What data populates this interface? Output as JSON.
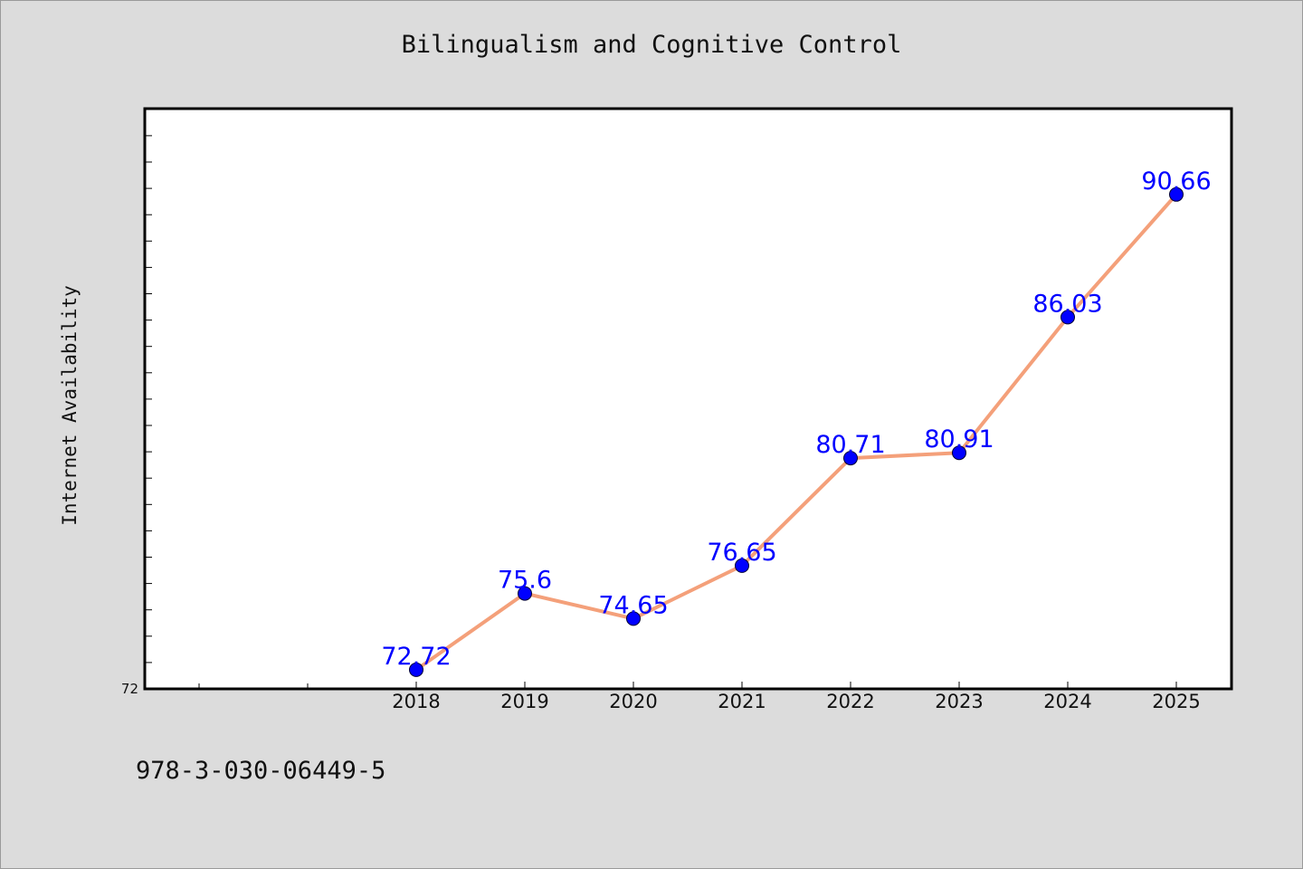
{
  "chart_data": {
    "type": "line",
    "title": "Bilingualism and Cognitive Control",
    "xlabel": "",
    "ylabel": "Internet Availability",
    "categories": [
      "2018",
      "2019",
      "2020",
      "2021",
      "2022",
      "2023",
      "2024",
      "2025"
    ],
    "series": [
      {
        "values": [
          72.72,
          75.6,
          74.65,
          76.65,
          80.71,
          80.91,
          86.03,
          90.66
        ],
        "labels": [
          "72.72",
          "75.6",
          "74.65",
          "76.65",
          "80.71",
          "80.91",
          "86.03",
          "90.66"
        ],
        "line_color": "#f4a07a",
        "marker_color": "#0000ff"
      }
    ],
    "y_tick_labels": [
      "72"
    ],
    "ylim": [
      72,
      93.9
    ],
    "grid": false,
    "legend": "none"
  },
  "footer": {
    "isbn": "978-3-030-06449-5"
  }
}
